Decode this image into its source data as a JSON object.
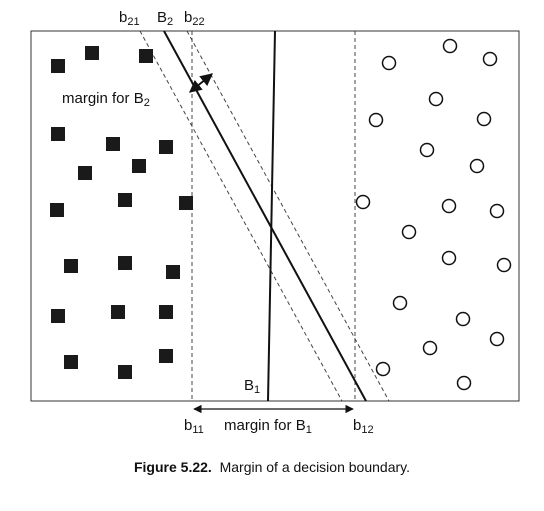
{
  "diagram": {
    "labels": {
      "b21": {
        "base": "b",
        "sub": "21"
      },
      "B2": {
        "base": "B",
        "sub": "2"
      },
      "b22": {
        "base": "b",
        "sub": "22"
      },
      "margin_b2": {
        "text": "margin for B",
        "sub": "2"
      },
      "B1": {
        "base": "B",
        "sub": "1"
      },
      "b11": {
        "base": "b",
        "sub": "11"
      },
      "margin_b1": {
        "text": "margin for B",
        "sub": "1"
      },
      "b12": {
        "base": "b",
        "sub": "12"
      }
    },
    "class_squares_count": 21,
    "class_circles_count": 22
  },
  "caption": {
    "figure_label": "Figure 5.22.",
    "text": "Margin of a decision boundary."
  }
}
